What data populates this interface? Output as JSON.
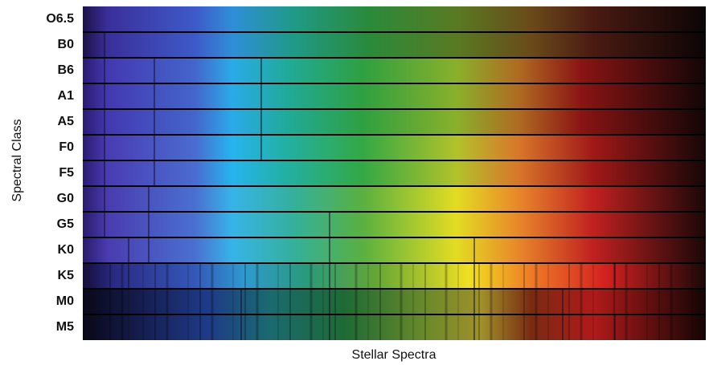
{
  "y_axis_label": "Spectral Class",
  "x_axis_label": "Stellar Spectra",
  "rows": [
    "O6.5",
    "B0",
    "B6",
    "A1",
    "A5",
    "F0",
    "F5",
    "G0",
    "G5",
    "K0",
    "K5",
    "M0",
    "M5"
  ]
}
